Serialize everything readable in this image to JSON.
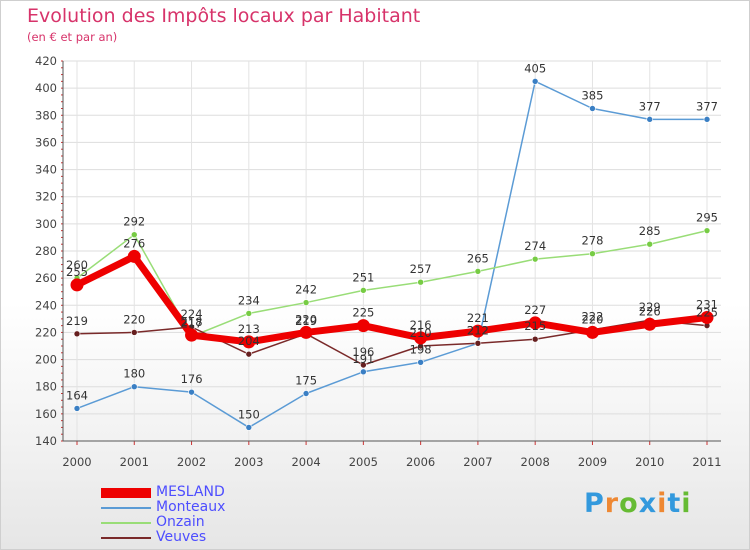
{
  "header": {
    "title": "Evolution des Impôts locaux par Habitant",
    "subtitle": "(en € et par an)"
  },
  "brand": {
    "letters": [
      "P",
      "r",
      "o",
      "x",
      "i",
      "t",
      "i"
    ],
    "colors": [
      "#3399dd",
      "#ee8833",
      "#66bb33",
      "#3399dd",
      "#ee8833",
      "#3399dd",
      "#66bb33"
    ]
  },
  "chart_data": {
    "type": "line",
    "title": "Evolution des Impôts locaux par Habitant",
    "subtitle": "(en € et par an)",
    "xlabel": "",
    "ylabel": "",
    "x": [
      "2000",
      "2001",
      "2002",
      "2003",
      "2004",
      "2005",
      "2006",
      "2007",
      "2008",
      "2009",
      "2010",
      "2011"
    ],
    "ylim": [
      140,
      420
    ],
    "yticks": [
      140,
      160,
      180,
      200,
      220,
      240,
      260,
      280,
      300,
      320,
      340,
      360,
      380,
      400,
      420
    ],
    "grid": true,
    "legend": "bottom-left",
    "series": [
      {
        "name": "Monteaux",
        "color": "#5b9bd5",
        "dot_color": "#3a7fc4",
        "values": [
          164,
          180,
          176,
          150,
          175,
          191,
          198,
          212,
          405,
          385,
          377,
          377
        ]
      },
      {
        "name": "Onzain",
        "color": "#99dd77",
        "dot_color": "#77cc44",
        "values": [
          260,
          292,
          217,
          234,
          242,
          251,
          257,
          265,
          274,
          278,
          285,
          295
        ]
      },
      {
        "name": "Veuves",
        "color": "#7a2a2a",
        "dot_color": "#661f1f",
        "values": [
          219,
          220,
          224,
          204,
          219,
          196,
          210,
          212,
          215,
          222,
          229,
          225
        ]
      },
      {
        "name": "MESLAND",
        "color": "#ee0000",
        "dot_color": "#ee0000",
        "bold": true,
        "values": [
          255,
          276,
          218,
          213,
          220,
          225,
          216,
          221,
          227,
          220,
          226,
          231
        ]
      }
    ]
  }
}
